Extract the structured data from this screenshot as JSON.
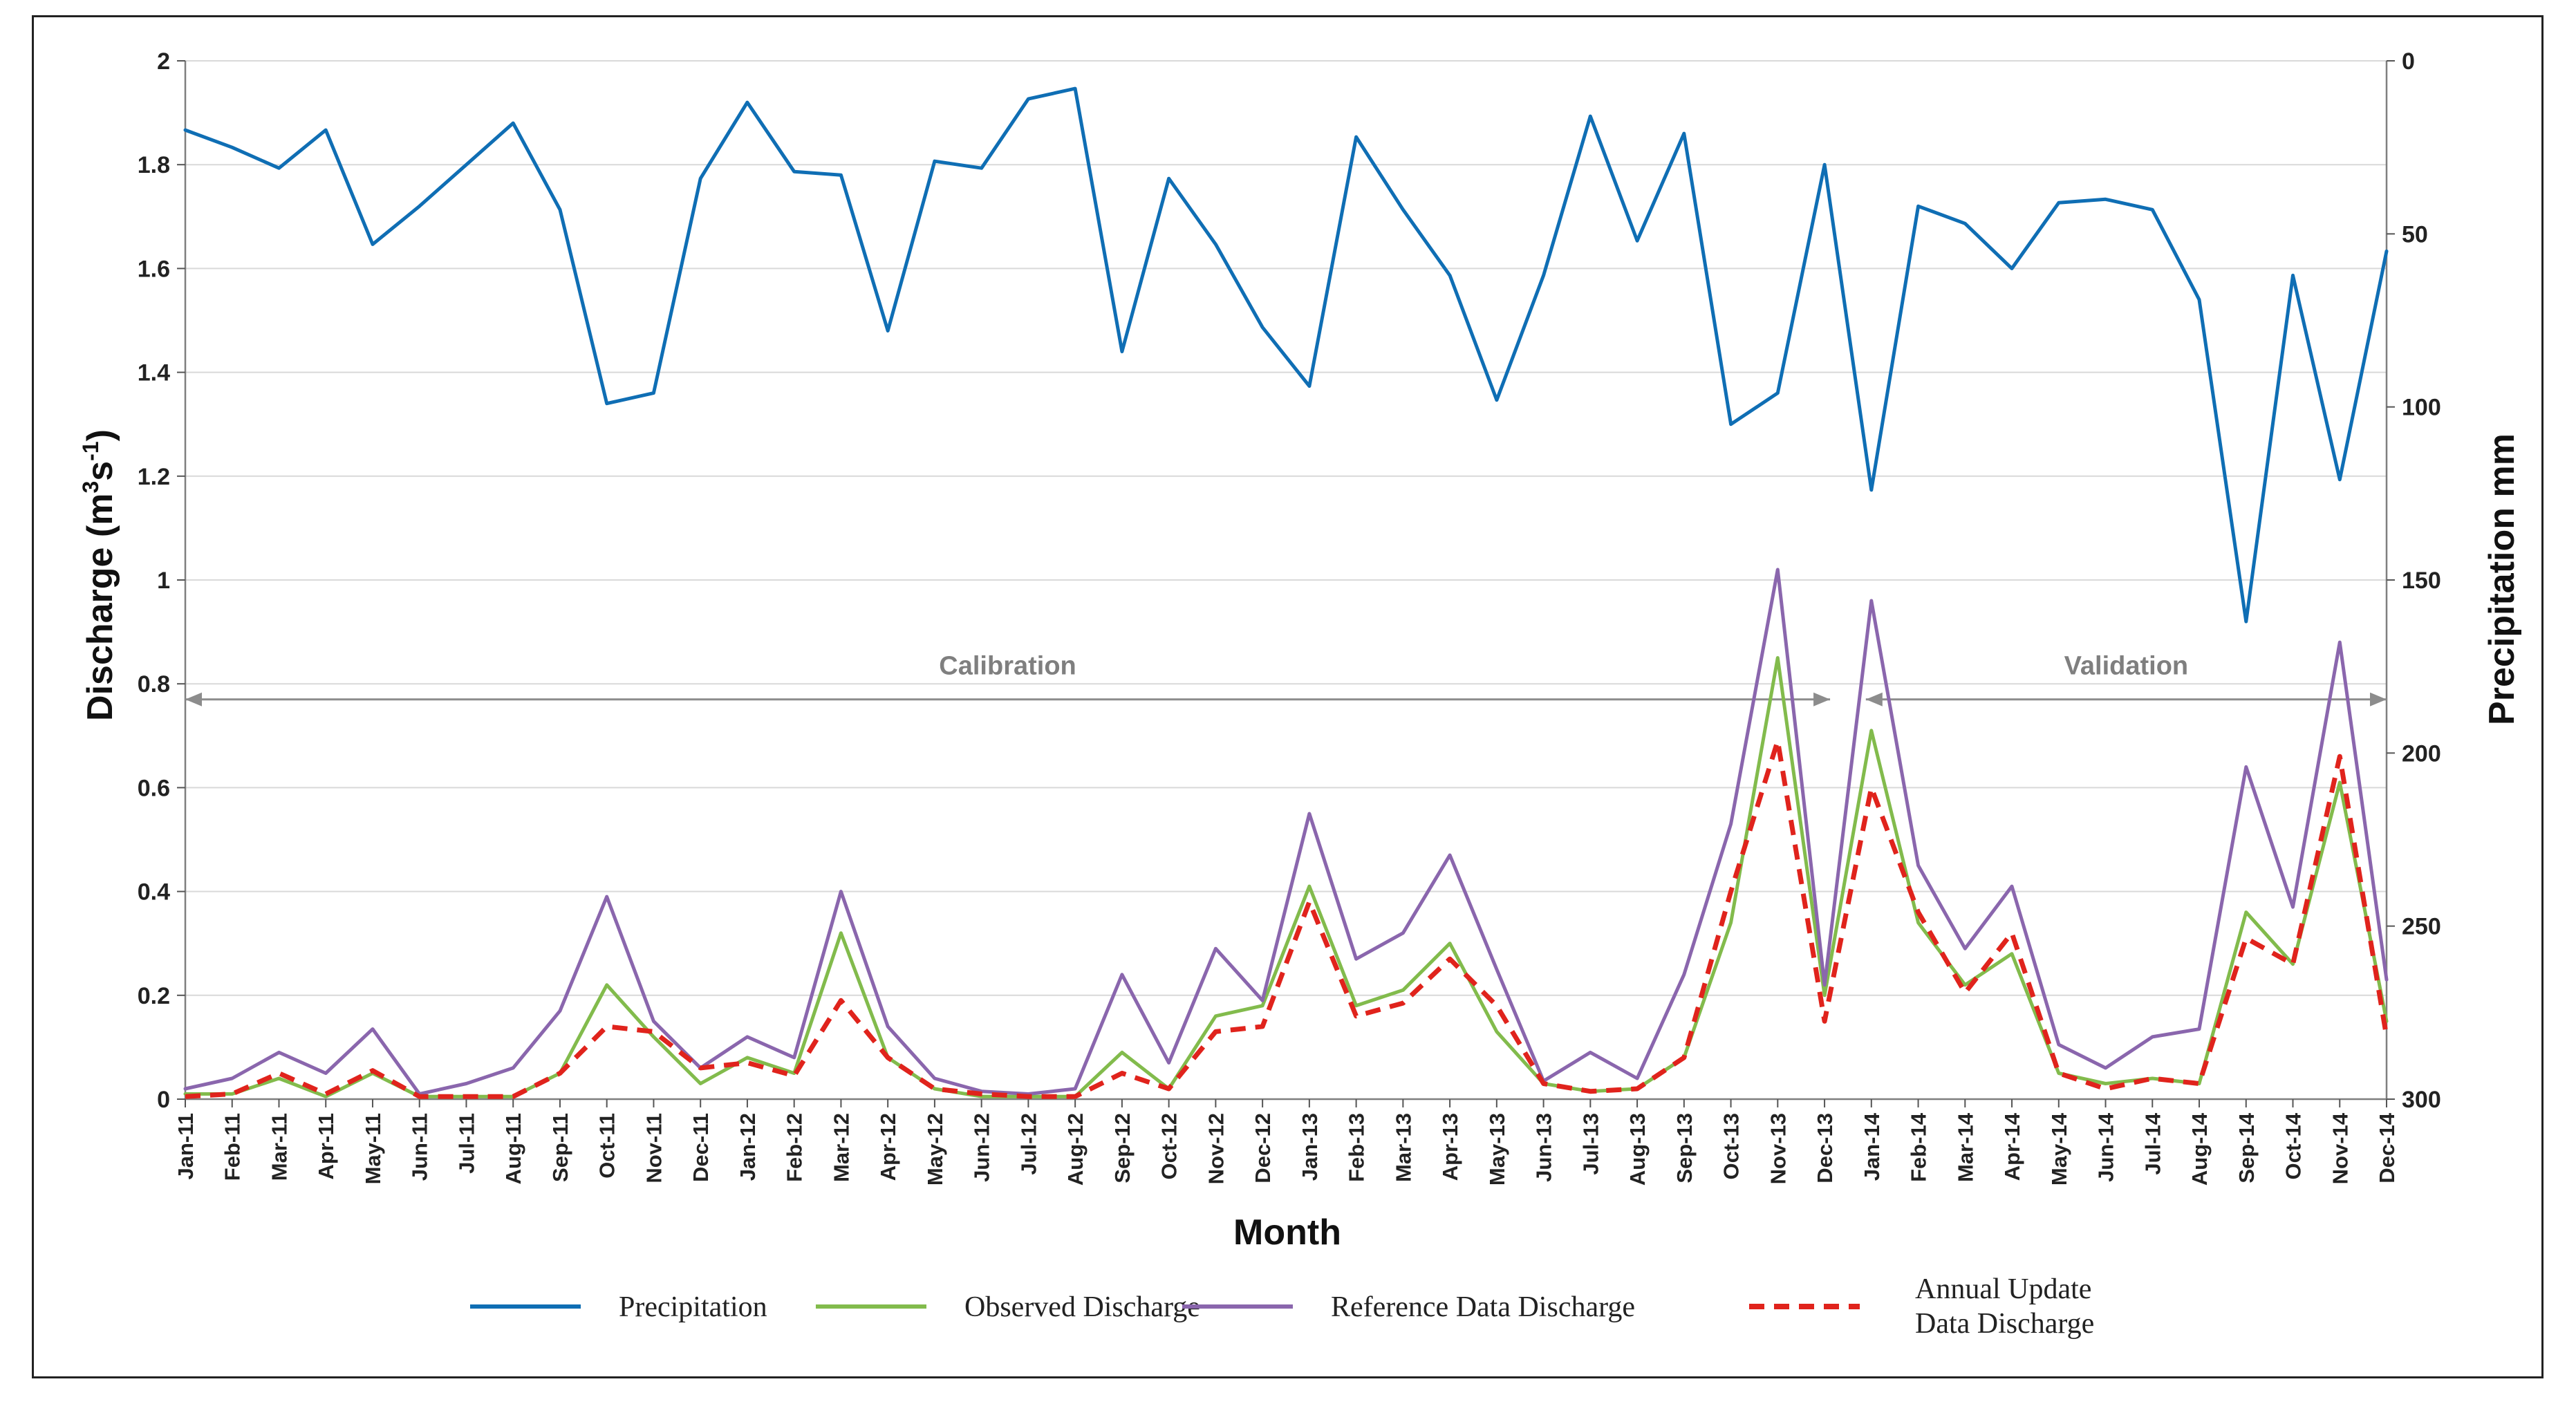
{
  "chart_data": {
    "type": "line",
    "xlabel": "Month",
    "ylabel_left": "Discharge (m³s⁻¹)",
    "ylabel_left_parts": [
      "Discharge (m",
      "3",
      "s",
      "-1",
      ")"
    ],
    "ylabel_right": "Precipitation mm",
    "ylim_left": [
      0,
      2
    ],
    "yticks_left": [
      "0",
      "0.2",
      "0.4",
      "0.6",
      "0.8",
      "1",
      "1.2",
      "1.4",
      "1.6",
      "1.8",
      "2"
    ],
    "ylim_right": [
      0,
      300
    ],
    "right_axis_inverted": true,
    "yticks_right": [
      "0",
      "50",
      "100",
      "150",
      "200",
      "250",
      "300"
    ],
    "categories": [
      "Jan-11",
      "Feb-11",
      "Mar-11",
      "Apr-11",
      "May-11",
      "Jun-11",
      "Jul-11",
      "Aug-11",
      "Sep-11",
      "Oct-11",
      "Nov-11",
      "Dec-11",
      "Jan-12",
      "Feb-12",
      "Mar-12",
      "Apr-12",
      "May-12",
      "Jun-12",
      "Jul-12",
      "Aug-12",
      "Sep-12",
      "Oct-12",
      "Nov-12",
      "Dec-12",
      "Jan-13",
      "Feb-13",
      "Mar-13",
      "Apr-13",
      "May-13",
      "Jun-13",
      "Jul-13",
      "Aug-13",
      "Sep-13",
      "Oct-13",
      "Nov-13",
      "Dec-13",
      "Jan-14",
      "Feb-14",
      "Mar-14",
      "Apr-14",
      "May-14",
      "Jun-14",
      "Jul-14",
      "Aug-14",
      "Sep-14",
      "Oct-14",
      "Nov-14",
      "Dec-14"
    ],
    "series": [
      {
        "name": "Precipitation",
        "axis": "right",
        "color": "#0f6eb4",
        "dash": "",
        "values": [
          20,
          25,
          31,
          20,
          53,
          42,
          30,
          18,
          43,
          99,
          96,
          34,
          12,
          32,
          33,
          78,
          29,
          31,
          11,
          8,
          84,
          34,
          53,
          77,
          94,
          22,
          43,
          62,
          98,
          62,
          16,
          52,
          21,
          105,
          96,
          30,
          124,
          42,
          47,
          60,
          41,
          40,
          43,
          69,
          162,
          62,
          121,
          55
        ]
      },
      {
        "name": "Observed Discharge",
        "axis": "left",
        "color": "#82bb4c",
        "dash": "",
        "values": [
          0.01,
          0.01,
          0.04,
          0.005,
          0.05,
          0.005,
          0.005,
          0.005,
          0.05,
          0.22,
          0.12,
          0.03,
          0.08,
          0.05,
          0.32,
          0.08,
          0.02,
          0.005,
          0.005,
          0.005,
          0.09,
          0.02,
          0.16,
          0.18,
          0.41,
          0.18,
          0.21,
          0.3,
          0.13,
          0.03,
          0.015,
          0.02,
          0.08,
          0.34,
          0.85,
          0.2,
          0.71,
          0.34,
          0.22,
          0.28,
          0.05,
          0.03,
          0.04,
          0.03,
          0.36,
          0.26,
          0.61,
          0.15
        ]
      },
      {
        "name": "Reference Data Discharge",
        "axis": "left",
        "color": "#8a66ad",
        "dash": "",
        "values": [
          0.02,
          0.04,
          0.09,
          0.05,
          0.135,
          0.01,
          0.03,
          0.06,
          0.17,
          0.39,
          0.15,
          0.06,
          0.12,
          0.08,
          0.4,
          0.14,
          0.04,
          0.015,
          0.01,
          0.02,
          0.24,
          0.07,
          0.29,
          0.19,
          0.55,
          0.27,
          0.32,
          0.47,
          0.25,
          0.035,
          0.09,
          0.04,
          0.24,
          0.53,
          1.02,
          0.22,
          0.96,
          0.45,
          0.29,
          0.41,
          0.105,
          0.06,
          0.12,
          0.135,
          0.64,
          0.37,
          0.88,
          0.23
        ]
      },
      {
        "name": "Annual Update Data Discharge",
        "axis": "left",
        "color": "#e0231c",
        "dash": "22,14",
        "values": [
          0.005,
          0.01,
          0.05,
          0.01,
          0.055,
          0.005,
          0.005,
          0.005,
          0.05,
          0.14,
          0.13,
          0.06,
          0.07,
          0.045,
          0.19,
          0.08,
          0.02,
          0.01,
          0.005,
          0.005,
          0.05,
          0.02,
          0.13,
          0.14,
          0.38,
          0.16,
          0.185,
          0.27,
          0.18,
          0.03,
          0.015,
          0.02,
          0.08,
          0.4,
          0.69,
          0.15,
          0.6,
          0.36,
          0.205,
          0.32,
          0.05,
          0.02,
          0.04,
          0.03,
          0.31,
          0.26,
          0.66,
          0.12
        ]
      }
    ],
    "periods": [
      {
        "label": "Calibration",
        "from": "Jan-11",
        "to": "Dec-13"
      },
      {
        "label": "Validation",
        "from": "Jan-14",
        "to": "Dec-14"
      }
    ],
    "legend": [
      {
        "lines": [
          "Precipitation"
        ],
        "color": "#0f6eb4",
        "dash": ""
      },
      {
        "lines": [
          "Observed Discharge"
        ],
        "color": "#82bb4c",
        "dash": ""
      },
      {
        "lines": [
          "Reference Data Discharge"
        ],
        "color": "#8a66ad",
        "dash": ""
      },
      {
        "lines": [
          "Annual Update",
          "Data Discharge"
        ],
        "color": "#e0231c",
        "dash": "22,14"
      }
    ],
    "grid": true,
    "legend_position": "bottom"
  }
}
